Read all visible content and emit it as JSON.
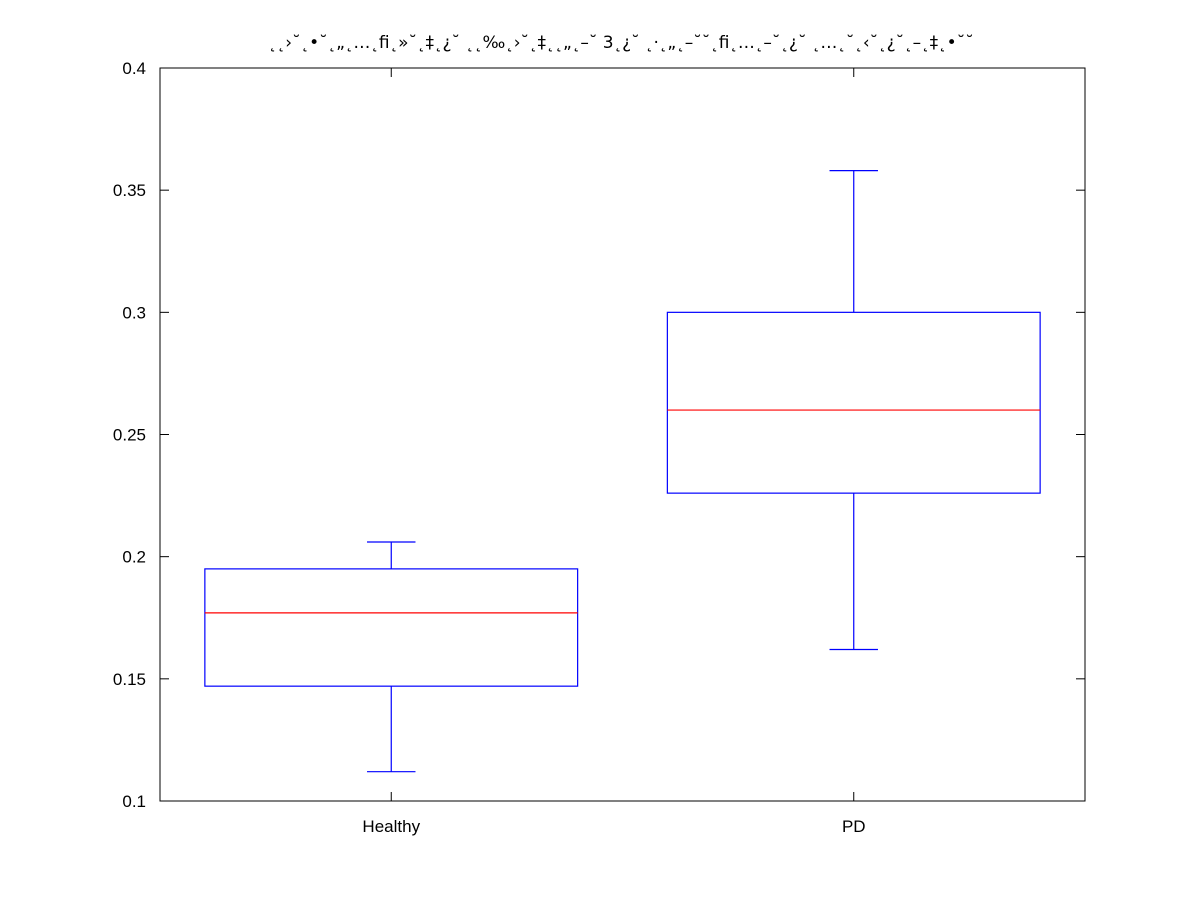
{
  "chart_data": {
    "type": "boxplot",
    "title": "˛˛›˘˛•˘˛„˛…˛ﬁ˛»˘˛‡˛¿˘ ˛˛‰˛›˘˛‡˛˛„˛–˘ 3˛¿˘ ˛·˛„˛–˘˘˛ﬁ˛…˛–˘˛¿˘ ˛…˛˘˛‹˘˛¿˘˛–˛‡˛•˘˘",
    "xlabel": "",
    "ylabel": "",
    "categories": [
      "Healthy",
      "PD"
    ],
    "ylim": [
      0.1,
      0.4
    ],
    "yticks": [
      "0.1",
      "0.15",
      "0.2",
      "0.25",
      "0.3",
      "0.35",
      "0.4"
    ],
    "boxes": [
      {
        "category": "Healthy",
        "whisker_low": 0.112,
        "q1": 0.147,
        "median": 0.177,
        "q3": 0.195,
        "whisker_high": 0.206
      },
      {
        "category": "PD",
        "whisker_low": 0.162,
        "q1": 0.226,
        "median": 0.26,
        "q3": 0.3,
        "whisker_high": 0.358
      }
    ],
    "colors": {
      "box": "#0000ff",
      "median": "#ff0000",
      "axes": "#000000"
    },
    "grid": false,
    "legend": "none"
  }
}
